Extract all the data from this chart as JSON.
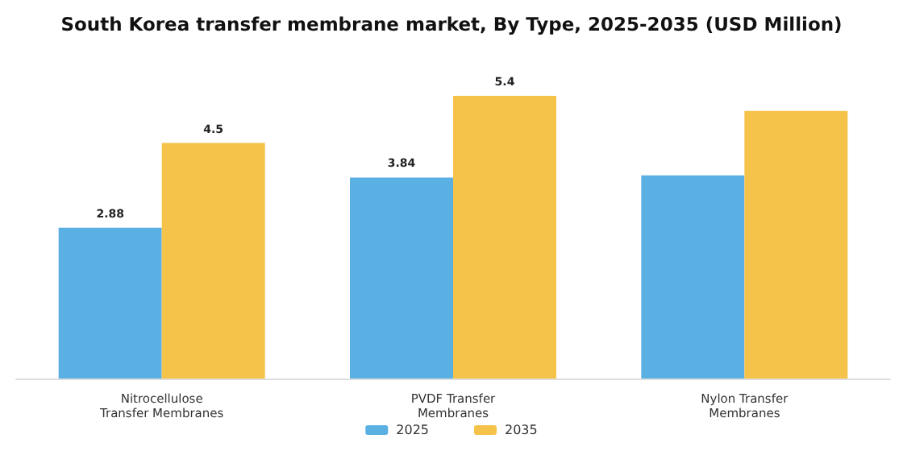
{
  "chart_data": {
    "type": "bar",
    "title": "South Korea transfer membrane market, By Type, 2025-2035 (USD Million)",
    "categories": [
      "Nitrocellulose\nTransfer Membranes",
      "PVDF Transfer\nMembranes",
      "Nylon Transfer\nMembranes"
    ],
    "series": [
      {
        "name": "2025",
        "color": "#5ab0e3",
        "values": [
          2.88,
          3.84,
          3.88
        ],
        "value_labels": [
          "2.88",
          "3.84",
          null
        ]
      },
      {
        "name": "2035",
        "color": "#f5c24a",
        "values": [
          4.5,
          5.4,
          5.11
        ],
        "value_labels": [
          "4.5",
          "5.4",
          null
        ]
      }
    ],
    "legend": "bottom",
    "tick_labels": "x"
  }
}
